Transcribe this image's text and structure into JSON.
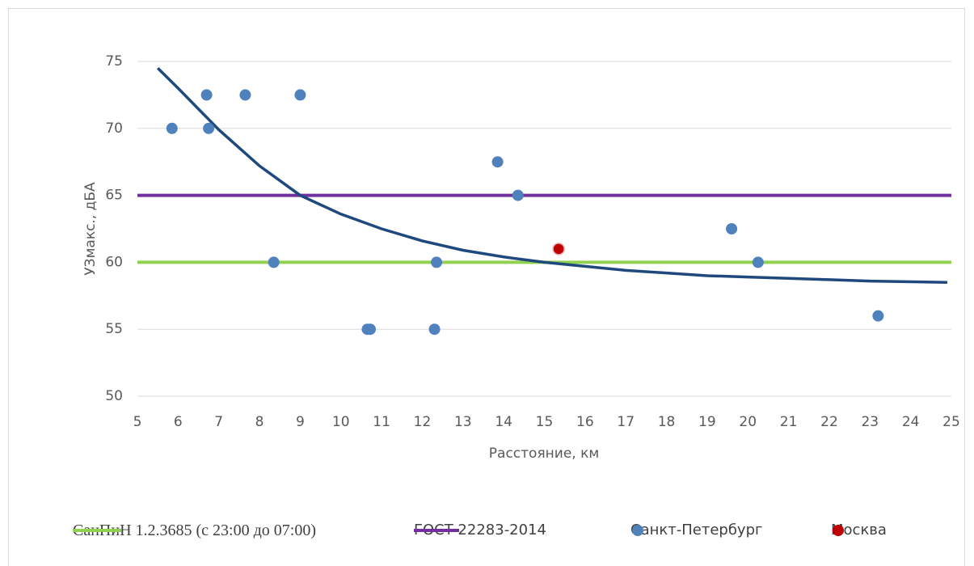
{
  "chart_data": {
    "type": "scatter",
    "x_label": "Расстояние, км",
    "y_label": "УЗмакс., дБА",
    "xlim": [
      5,
      25
    ],
    "xticks": [
      5,
      6,
      7,
      8,
      9,
      10,
      11,
      12,
      13,
      14,
      15,
      16,
      17,
      18,
      19,
      20,
      21,
      22,
      23,
      24,
      25
    ],
    "ylim": [
      50,
      75
    ],
    "yticks": [
      50,
      55,
      60,
      65,
      70,
      75
    ],
    "grid": true,
    "series": [
      {
        "name": "СанПиН 1.2.3685 (с 23:00 до 07:00)",
        "type": "line",
        "color": "#92d050",
        "x": [
          5,
          25
        ],
        "values": [
          60,
          60
        ]
      },
      {
        "name": "ГОСТ 22283-2014",
        "type": "line",
        "color": "#7030a0",
        "x": [
          5,
          25
        ],
        "values": [
          65,
          65
        ]
      },
      {
        "name": "Санкт-Петербург",
        "type": "scatter",
        "color": "#4f81bd",
        "x": [
          5.85,
          6.7,
          6.75,
          7.65,
          9,
          8.35,
          10.65,
          10.72,
          12.3,
          12.35,
          13.85,
          14.35,
          19.6,
          20.25,
          23.2
        ],
        "values": [
          70,
          72.5,
          70,
          72.5,
          72.5,
          60,
          55,
          55,
          55,
          60,
          67.5,
          65,
          62.5,
          60,
          56
        ]
      },
      {
        "name": "Москва",
        "type": "scatter",
        "color": "#c00000",
        "x": [
          15.35
        ],
        "values": [
          61
        ]
      },
      {
        "type": "line",
        "color": "#1f497d",
        "x": [
          5.5,
          6,
          7,
          8,
          9,
          10,
          11,
          12,
          13,
          14,
          15,
          16,
          17,
          18,
          19,
          20,
          21,
          22,
          23,
          24.9
        ],
        "values": [
          74.5,
          73,
          69.9,
          67.2,
          65,
          63.6,
          62.5,
          61.6,
          60.9,
          60.4,
          60,
          59.7,
          59.4,
          59.2,
          59,
          58.9,
          58.8,
          58.7,
          58.6,
          58.5
        ]
      }
    ]
  }
}
